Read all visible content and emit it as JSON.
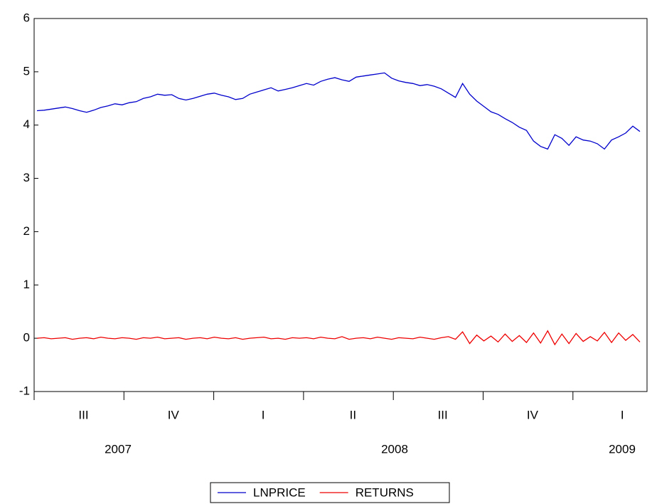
{
  "chart_data": {
    "type": "line",
    "ylim": [
      -1,
      6
    ],
    "yticks": [
      -1,
      0,
      1,
      2,
      3,
      4,
      5,
      6
    ],
    "quarters": [
      "III",
      "IV",
      "I",
      "II",
      "III",
      "IV",
      "I"
    ],
    "years": [
      "2007",
      "2008",
      "2009"
    ],
    "legend": "bottom",
    "series": [
      {
        "name": "LNPRICE",
        "color": "#0000cc",
        "values": [
          4.27,
          4.28,
          4.3,
          4.32,
          4.34,
          4.31,
          4.27,
          4.24,
          4.28,
          4.33,
          4.36,
          4.4,
          4.38,
          4.42,
          4.44,
          4.5,
          4.53,
          4.58,
          4.56,
          4.57,
          4.5,
          4.47,
          4.5,
          4.54,
          4.58,
          4.6,
          4.56,
          4.53,
          4.48,
          4.5,
          4.58,
          4.62,
          4.66,
          4.7,
          4.64,
          4.67,
          4.7,
          4.74,
          4.78,
          4.75,
          4.82,
          4.86,
          4.89,
          4.85,
          4.82,
          4.9,
          4.92,
          4.94,
          4.96,
          4.98,
          4.88,
          4.83,
          4.8,
          4.78,
          4.74,
          4.76,
          4.73,
          4.68,
          4.6,
          4.52,
          4.78,
          4.58,
          4.45,
          4.35,
          4.25,
          4.2,
          4.12,
          4.05,
          3.96,
          3.9,
          3.7,
          3.6,
          3.55,
          3.82,
          3.75,
          3.62,
          3.78,
          3.72,
          3.7,
          3.65,
          3.55,
          3.72,
          3.78,
          3.85,
          3.98,
          3.88
        ]
      },
      {
        "name": "RETURNS",
        "color": "#ee0000",
        "values": [
          0.0,
          0.01,
          -0.01,
          0.0,
          0.01,
          -0.02,
          0.0,
          0.01,
          -0.01,
          0.02,
          0.0,
          -0.01,
          0.01,
          0.0,
          -0.02,
          0.01,
          0.0,
          0.02,
          -0.01,
          0.0,
          0.01,
          -0.02,
          0.0,
          0.01,
          -0.01,
          0.02,
          0.0,
          -0.01,
          0.01,
          -0.02,
          0.0,
          0.01,
          0.02,
          -0.01,
          0.0,
          -0.02,
          0.01,
          0.0,
          0.01,
          -0.01,
          0.02,
          0.0,
          -0.01,
          0.03,
          -0.02,
          0.0,
          0.01,
          -0.01,
          0.02,
          0.0,
          -0.02,
          0.01,
          0.0,
          -0.01,
          0.02,
          0.0,
          -0.02,
          0.01,
          0.03,
          -0.02,
          0.12,
          -0.1,
          0.06,
          -0.05,
          0.04,
          -0.07,
          0.08,
          -0.06,
          0.05,
          -0.08,
          0.1,
          -0.09,
          0.14,
          -0.12,
          0.08,
          -0.1,
          0.09,
          -0.06,
          0.03,
          -0.05,
          0.11,
          -0.08,
          0.1,
          -0.04,
          0.07,
          -0.07
        ]
      }
    ]
  }
}
